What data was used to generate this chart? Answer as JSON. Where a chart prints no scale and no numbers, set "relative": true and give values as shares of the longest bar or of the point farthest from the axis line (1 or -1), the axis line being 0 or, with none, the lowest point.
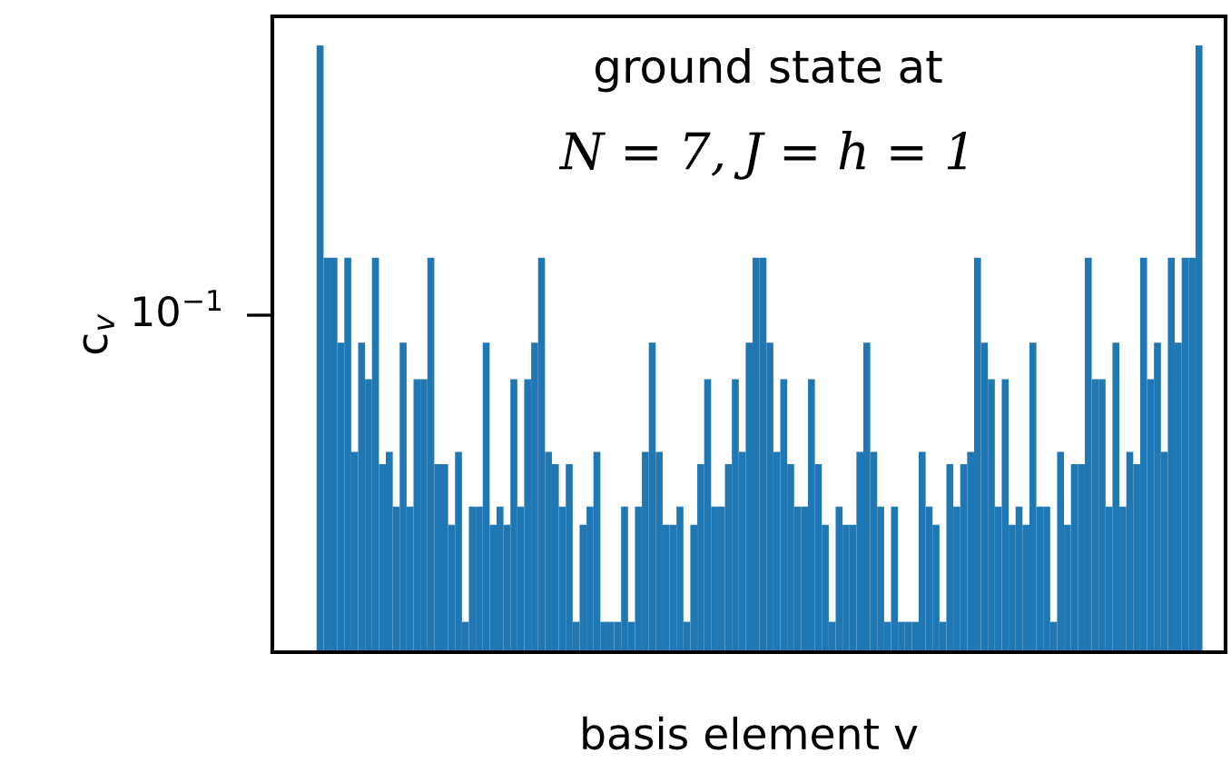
{
  "chart_data": {
    "type": "bar",
    "xlabel": "basis element v",
    "ylabel": "c$_{v}$",
    "annotations": [
      "ground state at",
      "N = 7, J = h = 1",
      "10$^{−1}$"
    ],
    "categories": [
      null,
      null,
      null,
      null,
      null,
      null,
      null,
      null,
      null,
      null,
      null,
      null,
      null,
      null,
      null,
      null,
      null,
      null,
      null,
      null,
      null,
      null,
      null,
      null,
      null,
      null,
      null,
      null,
      null,
      null,
      null,
      null,
      null,
      null,
      null,
      null,
      null,
      null,
      null,
      null,
      null,
      null,
      null,
      null,
      null,
      null,
      null,
      null,
      null,
      null,
      null,
      null,
      null,
      null,
      null,
      null,
      null,
      null,
      null,
      null,
      null,
      null,
      null,
      null,
      null,
      null,
      null,
      null,
      null,
      null,
      null,
      null,
      null,
      null,
      null,
      null,
      null,
      null,
      null,
      null,
      null,
      null,
      null,
      null,
      null,
      null,
      null,
      null,
      null,
      null,
      null,
      null,
      null,
      null,
      null,
      null,
      null,
      null,
      null,
      null,
      null,
      null,
      null,
      null,
      null,
      null,
      null,
      null,
      null,
      null,
      null,
      null,
      null,
      null,
      null,
      null,
      null,
      null,
      null,
      null,
      null,
      null,
      null,
      null,
      null,
      null,
      null,
      null
    ],
    "values": [
      1,
      0.65,
      0.65,
      0.51,
      0.65,
      0.33,
      0.51,
      0.45,
      0.65,
      0.31,
      0.33,
      0.24,
      0.51,
      0.24,
      0.45,
      0.45,
      0.65,
      0.31,
      0.31,
      0.21,
      0.33,
      0.05,
      0.24,
      0.24,
      0.51,
      0.21,
      0.24,
      0.21,
      0.45,
      0.24,
      0.45,
      0.51,
      0.65,
      0.33,
      0.31,
      0.24,
      0.31,
      0.05,
      0.21,
      0.24,
      0.33,
      0.05,
      0.05,
      0.05,
      0.24,
      0.05,
      0.24,
      0.33,
      0.51,
      0.33,
      0.21,
      0.21,
      0.24,
      0.05,
      0.21,
      0.31,
      0.45,
      0.24,
      0.24,
      0.31,
      0.45,
      0.33,
      0.51,
      0.65,
      0.65,
      0.51,
      0.33,
      0.45,
      0.31,
      0.24,
      0.24,
      0.45,
      0.31,
      0.21,
      0.05,
      0.24,
      0.21,
      0.21,
      0.33,
      0.51,
      0.33,
      0.24,
      0.05,
      0.24,
      0.05,
      0.05,
      0.05,
      0.33,
      0.24,
      0.21,
      0.05,
      0.31,
      0.24,
      0.31,
      0.33,
      0.65,
      0.51,
      0.45,
      0.24,
      0.45,
      0.21,
      0.24,
      0.21,
      0.51,
      0.24,
      0.24,
      0.05,
      0.33,
      0.21,
      0.31,
      0.31,
      0.65,
      0.45,
      0.45,
      0.24,
      0.51,
      0.24,
      0.33,
      0.31,
      0.65,
      0.45,
      0.51,
      0.33,
      0.65,
      0.51,
      0.65,
      0.65,
      1
    ],
    "color": "#1f77b4",
    "relative": true,
    "tick_labels": "y"
  }
}
